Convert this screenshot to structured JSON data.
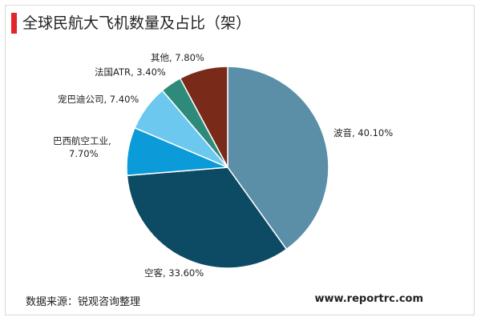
{
  "colors": {
    "accent": "#e0262b",
    "text": "#222222"
  },
  "header": {
    "title": "全球民航大飞机数量及占比（架）"
  },
  "footer": {
    "source": "数据来源：锐观咨询整理",
    "website": "www.reportrc.com"
  },
  "chart_data": {
    "type": "pie",
    "title": "全球民航大飞机数量及占比（架）",
    "unit": "%",
    "slices": [
      {
        "name": "波音",
        "value": 40.1,
        "label": "波音, 40.10%",
        "color": "#5b8fa8"
      },
      {
        "name": "空客",
        "value": 33.6,
        "label": "空客, 33.60%",
        "color": "#0d4a63"
      },
      {
        "name": "巴西航空工业",
        "value": 7.7,
        "label": [
          "巴西航空工业,",
          "7.70%"
        ],
        "color": "#0a9bd8"
      },
      {
        "name": "宠巴迪公司",
        "value": 7.4,
        "label": "宠巴迪公司, 7.40%",
        "color": "#6cc8ee"
      },
      {
        "name": "法国ATR",
        "value": 3.4,
        "label": "法国ATR, 3.40%",
        "color": "#2e8b7c"
      },
      {
        "name": "其他",
        "value": 7.8,
        "label": "其他, 7.80%",
        "color": "#7a2a18"
      }
    ]
  }
}
